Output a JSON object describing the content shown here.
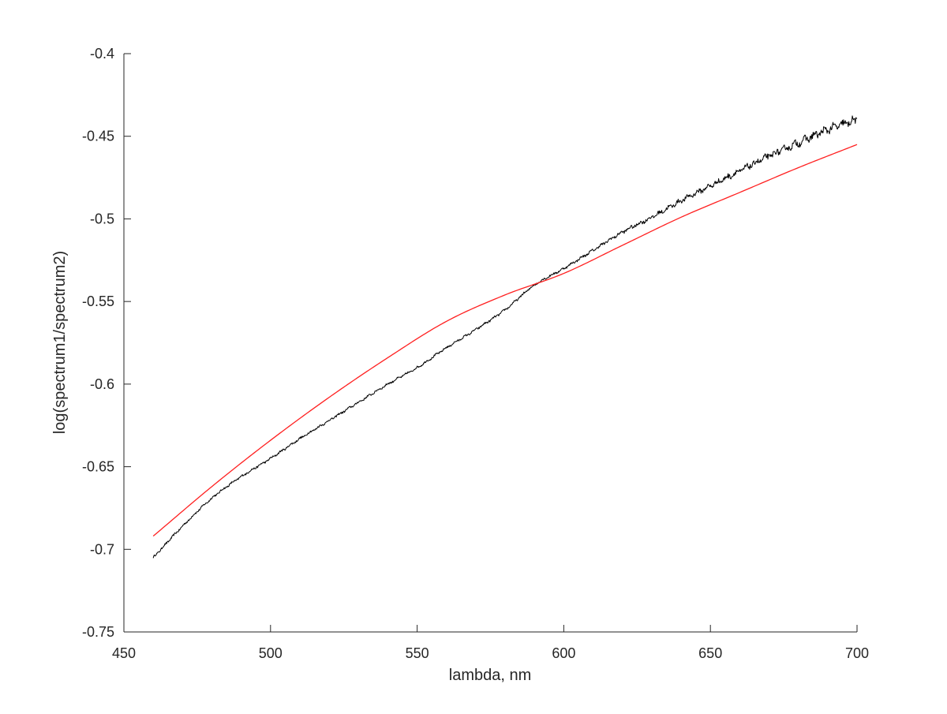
{
  "chart_data": {
    "type": "line",
    "title": "",
    "xlabel": "lambda, nm",
    "ylabel": "log(spectrum1/spectrum2)",
    "xlim": [
      450,
      700
    ],
    "ylim": [
      -0.75,
      -0.4
    ],
    "xticks": [
      450,
      500,
      550,
      600,
      650,
      700
    ],
    "xtick_labels": [
      "450",
      "500",
      "550",
      "600",
      "650",
      "700"
    ],
    "yticks": [
      -0.75,
      -0.7,
      -0.65,
      -0.6,
      -0.55,
      -0.5,
      -0.45,
      -0.4
    ],
    "ytick_labels": [
      "-0.75",
      "-0.7",
      "-0.65",
      "-0.6",
      "-0.55",
      "-0.5",
      "-0.45",
      "-0.4"
    ],
    "grid": false,
    "legend": "none",
    "series": [
      {
        "color": "#000000",
        "noisy": true,
        "x": [
          460,
          470,
          480,
          490,
          500,
          510,
          520,
          530,
          540,
          550,
          560,
          570,
          580,
          590,
          600,
          610,
          620,
          630,
          640,
          650,
          660,
          670,
          680,
          690,
          700
        ],
        "y": [
          -0.705,
          -0.686,
          -0.669,
          -0.656,
          -0.645,
          -0.633,
          -0.622,
          -0.611,
          -0.6,
          -0.59,
          -0.578,
          -0.567,
          -0.555,
          -0.54,
          -0.53,
          -0.519,
          -0.508,
          -0.499,
          -0.489,
          -0.48,
          -0.471,
          -0.462,
          -0.454,
          -0.446,
          -0.44
        ]
      },
      {
        "color": "#ff2020",
        "noisy": false,
        "x": [
          460,
          480,
          500,
          520,
          540,
          560,
          580,
          600,
          620,
          640,
          660,
          680,
          700
        ],
        "y": [
          -0.692,
          -0.662,
          -0.634,
          -0.608,
          -0.584,
          -0.562,
          -0.546,
          -0.533,
          -0.516,
          -0.499,
          -0.484,
          -0.469,
          -0.455
        ]
      }
    ]
  }
}
